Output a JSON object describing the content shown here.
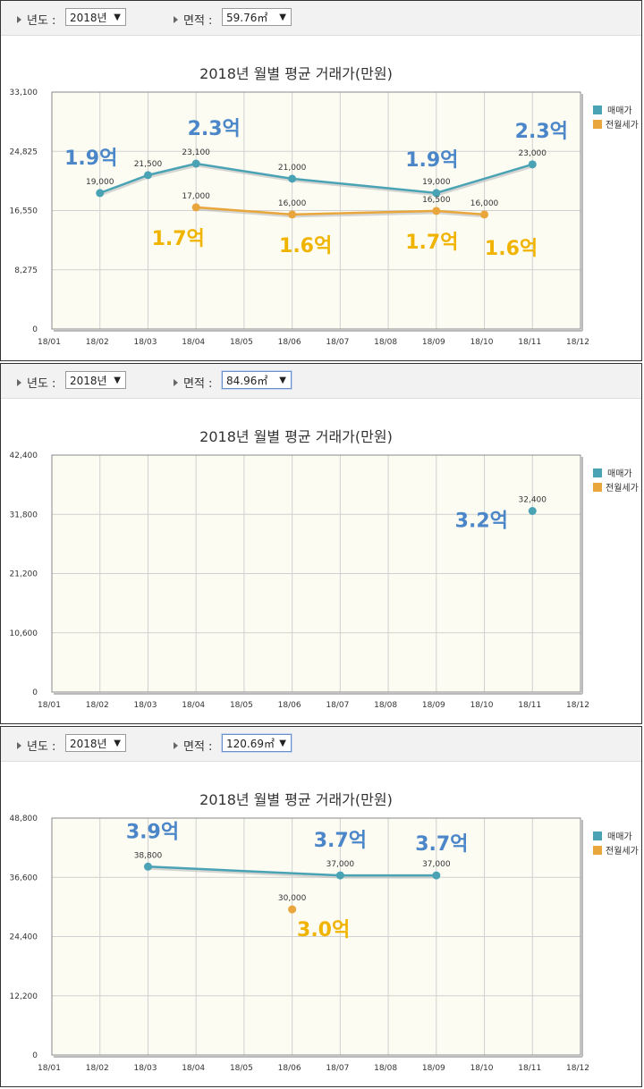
{
  "toolbar": {
    "year_label": "년도 :",
    "area_label": "면적 :",
    "arrow": "▼"
  },
  "colors": {
    "sale": "#4aa3b5",
    "rent": "#e8a63c",
    "annot_blue": "#4a86c8",
    "annot_yellow": "#f0b400",
    "plot_bg": "#fdfcf3",
    "grid": "#d0d0d0"
  },
  "legend": {
    "sale": "매매가",
    "rent": "전월세가"
  },
  "chart_data": [
    {
      "type": "line",
      "year": "2018년",
      "area": "59.76㎡",
      "title": "2018년 월별 평균 거래가(만원)",
      "categories": [
        "18/01",
        "18/02",
        "18/03",
        "18/04",
        "18/05",
        "18/06",
        "18/07",
        "18/08",
        "18/09",
        "18/10",
        "18/11",
        "18/12"
      ],
      "ylim": [
        0,
        33100
      ],
      "yticks": [
        "0",
        "8,275",
        "16,550",
        "24,825",
        "33,100"
      ],
      "series": [
        {
          "name": "매매가",
          "points": [
            {
              "x": "18/02",
              "y": 19000,
              "label": "19,000"
            },
            {
              "x": "18/03",
              "y": 21500,
              "label": "21,500"
            },
            {
              "x": "18/04",
              "y": 23100,
              "label": "23,100"
            },
            {
              "x": "18/06",
              "y": 21000,
              "label": "21,000"
            },
            {
              "x": "18/09",
              "y": 19000,
              "label": "19,000"
            },
            {
              "x": "18/11",
              "y": 23000,
              "label": "23,000"
            }
          ]
        },
        {
          "name": "전월세가",
          "points": [
            {
              "x": "18/04",
              "y": 17000,
              "label": "17,000"
            },
            {
              "x": "18/06",
              "y": 16000,
              "label": "16,000"
            },
            {
              "x": "18/09",
              "y": 16500,
              "label": "16,500"
            },
            {
              "x": "18/10",
              "y": 16000,
              "label": "16,000"
            }
          ]
        }
      ],
      "annotations": [
        {
          "text": "1.9억",
          "x": "18/02",
          "series": "매매가"
        },
        {
          "text": "2.3억",
          "x": "18/04",
          "series": "매매가"
        },
        {
          "text": "1.9억",
          "x": "18/09",
          "series": "매매가"
        },
        {
          "text": "2.3억",
          "x": "18/11",
          "series": "매매가"
        },
        {
          "text": "1.7억",
          "x": "18/04",
          "series": "전월세가"
        },
        {
          "text": "1.6억",
          "x": "18/06",
          "series": "전월세가"
        },
        {
          "text": "1.7억",
          "x": "18/09",
          "series": "전월세가"
        },
        {
          "text": "1.6억",
          "x": "18/10",
          "series": "전월세가"
        }
      ]
    },
    {
      "type": "line",
      "year": "2018년",
      "area": "84.96㎡",
      "title": "2018년 월별 평균 거래가(만원)",
      "categories": [
        "18/01",
        "18/02",
        "18/03",
        "18/04",
        "18/05",
        "18/06",
        "18/07",
        "18/08",
        "18/09",
        "18/10",
        "18/11",
        "18/12"
      ],
      "ylim": [
        0,
        42400
      ],
      "yticks": [
        "0",
        "10,600",
        "21,200",
        "31,800",
        "42,400"
      ],
      "series": [
        {
          "name": "매매가",
          "points": [
            {
              "x": "18/11",
              "y": 32400,
              "label": "32,400"
            }
          ]
        },
        {
          "name": "전월세가",
          "points": []
        }
      ],
      "annotations": [
        {
          "text": "3.2억",
          "x": "18/11",
          "series": "매매가"
        }
      ]
    },
    {
      "type": "line",
      "year": "2018년",
      "area": "120.69㎡",
      "title": "2018년 월별 평균 거래가(만원)",
      "categories": [
        "18/01",
        "18/02",
        "18/03",
        "18/04",
        "18/05",
        "18/06",
        "18/07",
        "18/08",
        "18/09",
        "18/10",
        "18/11",
        "18/12"
      ],
      "ylim": [
        0,
        48800
      ],
      "yticks": [
        "0",
        "12,200",
        "24,400",
        "36,600",
        "48,800"
      ],
      "series": [
        {
          "name": "매매가",
          "points": [
            {
              "x": "18/03",
              "y": 38800,
              "label": "38,800"
            },
            {
              "x": "18/07",
              "y": 37000,
              "label": "37,000"
            },
            {
              "x": "18/09",
              "y": 37000,
              "label": "37,000"
            }
          ]
        },
        {
          "name": "전월세가",
          "points": [
            {
              "x": "18/06",
              "y": 30000,
              "label": "30,000"
            }
          ]
        }
      ],
      "annotations": [
        {
          "text": "3.9억",
          "x": "18/03",
          "series": "매매가"
        },
        {
          "text": "3.7억",
          "x": "18/07",
          "series": "매매가"
        },
        {
          "text": "3.7억",
          "x": "18/09",
          "series": "매매가"
        },
        {
          "text": "3.0억",
          "x": "18/06",
          "series": "전월세가"
        }
      ]
    }
  ]
}
